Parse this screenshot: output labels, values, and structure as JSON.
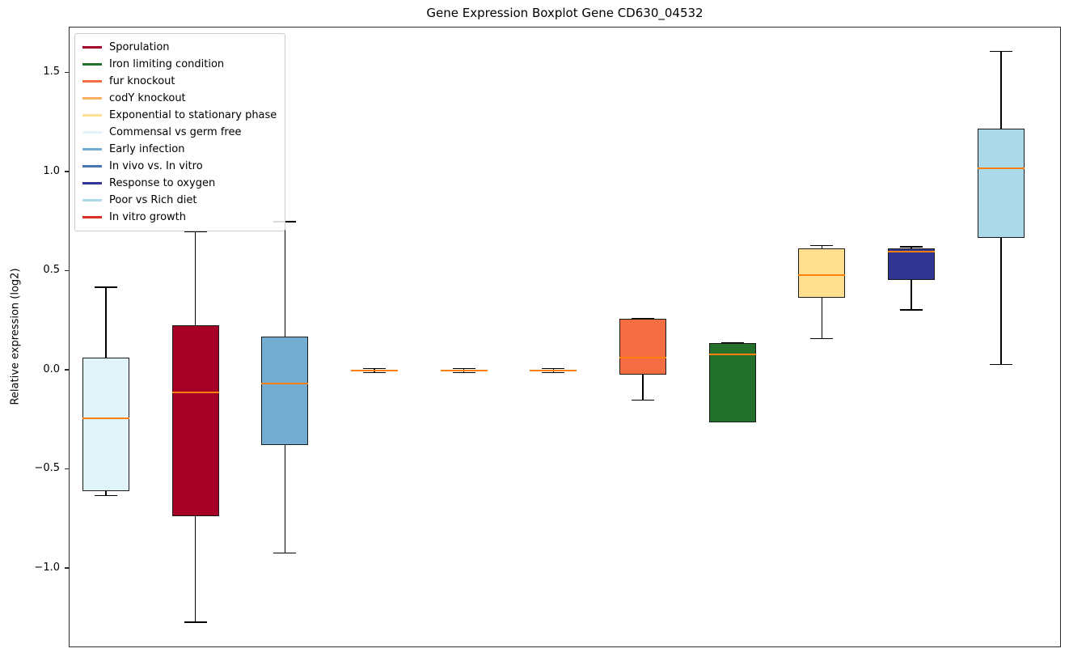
{
  "chart_data": {
    "type": "boxplot",
    "title": "Gene Expression Boxplot Gene CD630_04532",
    "ylabel": "Relative expression (log2)",
    "xlabel": "",
    "ylim": [
      -1.4,
      1.73
    ],
    "grid": false,
    "yticks": [
      {
        "value": -1.0,
        "label": "−1.0"
      },
      {
        "value": -0.5,
        "label": "−0.5"
      },
      {
        "value": 0.0,
        "label": "0.0"
      },
      {
        "value": 0.5,
        "label": "0.5"
      },
      {
        "value": 1.0,
        "label": "1.0"
      },
      {
        "value": 1.5,
        "label": "1.5"
      }
    ],
    "median_color": "#ff7f0e",
    "whisker_color": "#000000",
    "series": [
      {
        "name": "Commensal vs germ free",
        "color": "#e0f3f8",
        "whisker_low": -0.63,
        "q1": -0.61,
        "median": -0.24,
        "q3": 0.065,
        "whisker_high": 0.42
      },
      {
        "name": "Sporulation",
        "color": "#a50026",
        "whisker_low": -1.27,
        "q1": -0.735,
        "median": -0.11,
        "q3": 0.23,
        "whisker_high": 0.7
      },
      {
        "name": "Early infection",
        "color": "#74add1",
        "whisker_low": -0.92,
        "q1": -0.375,
        "median": -0.065,
        "q3": 0.17,
        "whisker_high": 0.75
      },
      {
        "name": "codY knockout",
        "color": "#fdae61",
        "whisker_low": -0.01,
        "q1": -0.005,
        "median": 0.0,
        "q3": 0.005,
        "whisker_high": 0.01
      },
      {
        "name": "In vivo vs. In vitro",
        "color": "#4575b4",
        "whisker_low": -0.01,
        "q1": -0.005,
        "median": 0.0,
        "q3": 0.005,
        "whisker_high": 0.01
      },
      {
        "name": "In vitro growth",
        "color": "#d73027",
        "whisker_low": -0.01,
        "q1": -0.005,
        "median": 0.0,
        "q3": 0.005,
        "whisker_high": 0.01
      },
      {
        "name": "fur knockout",
        "color": "#f46d43",
        "whisker_low": -0.15,
        "q1": -0.02,
        "median": 0.065,
        "q3": 0.26,
        "whisker_high": 0.26
      },
      {
        "name": "Iron limiting condition",
        "color": "#23712b",
        "whisker_low": -0.26,
        "q1": -0.26,
        "median": 0.08,
        "q3": 0.14,
        "whisker_high": 0.14
      },
      {
        "name": "Exponential to stationary phase",
        "color": "#fee090",
        "whisker_low": 0.16,
        "q1": 0.365,
        "median": 0.48,
        "q3": 0.615,
        "whisker_high": 0.63
      },
      {
        "name": "Response to oxygen",
        "color": "#313695",
        "whisker_low": 0.305,
        "q1": 0.455,
        "median": 0.6,
        "q3": 0.615,
        "whisker_high": 0.625
      },
      {
        "name": "Poor vs Rich diet",
        "color": "#abd9e9",
        "whisker_low": 0.03,
        "q1": 0.67,
        "median": 1.02,
        "q3": 1.22,
        "whisker_high": 1.61
      }
    ],
    "legend": {
      "position": "upper left",
      "entries": [
        {
          "label": "Sporulation",
          "color": "#a50026"
        },
        {
          "label": "Iron limiting condition",
          "color": "#23712b"
        },
        {
          "label": "fur knockout",
          "color": "#f46d43"
        },
        {
          "label": "codY knockout",
          "color": "#fdae61"
        },
        {
          "label": "Exponential to stationary phase",
          "color": "#fee090"
        },
        {
          "label": "Commensal vs germ free",
          "color": "#e0f3f8"
        },
        {
          "label": "Early infection",
          "color": "#74add1"
        },
        {
          "label": "In vivo vs. In vitro",
          "color": "#4575b4"
        },
        {
          "label": "Response to oxygen",
          "color": "#313695"
        },
        {
          "label": "Poor vs Rich diet",
          "color": "#abd9e9"
        },
        {
          "label": "In vitro growth",
          "color": "#d73027"
        }
      ]
    }
  }
}
